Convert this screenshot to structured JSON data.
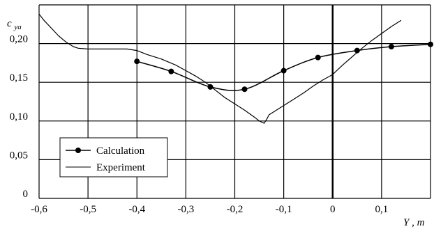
{
  "chart_data": {
    "type": "line",
    "title": "",
    "ylabel_main": "c",
    "ylabel_sub": "ya",
    "xlabel": "Y",
    "xunit": ", m",
    "xlim": [
      -0.6,
      0.2
    ],
    "ylim": [
      0,
      0.25
    ],
    "x_ticks": [
      -0.6,
      -0.5,
      -0.4,
      -0.3,
      -0.2,
      -0.1,
      0,
      0.1
    ],
    "x_tick_labels": [
      "-0,6",
      "-0,5",
      "-0,4",
      "-0,3",
      "-0,2",
      "-0,1",
      "0",
      "0,1"
    ],
    "y_ticks": [
      0,
      0.05,
      0.1,
      0.15,
      0.2
    ],
    "y_tick_labels": [
      "0",
      "0,05",
      "0,10",
      "0,15",
      "0,20"
    ],
    "grid": true,
    "legend_position": "bottom-left",
    "series": [
      {
        "name": "Calculation",
        "marker": "circle",
        "x": [
          -0.4,
          -0.33,
          -0.25,
          -0.18,
          -0.1,
          -0.03,
          0.05,
          0.12,
          0.2
        ],
        "y": [
          0.177,
          0.164,
          0.144,
          0.141,
          0.165,
          0.182,
          0.191,
          0.196,
          0.199
        ]
      },
      {
        "name": "Experiment",
        "marker": "none",
        "x": [
          -0.6,
          -0.59,
          -0.575,
          -0.56,
          -0.545,
          -0.53,
          -0.52,
          -0.5,
          -0.48,
          -0.45,
          -0.42,
          -0.4,
          -0.38,
          -0.35,
          -0.32,
          -0.3,
          -0.28,
          -0.26,
          -0.24,
          -0.22,
          -0.2,
          -0.18,
          -0.16,
          -0.15,
          -0.14,
          -0.135,
          -0.13,
          -0.12,
          -0.1,
          -0.08,
          -0.06,
          -0.04,
          -0.02,
          0.0,
          0.02,
          0.04,
          0.06,
          0.08,
          0.1,
          0.12,
          0.14
        ],
        "y": [
          0.238,
          0.23,
          0.22,
          0.21,
          0.202,
          0.196,
          0.194,
          0.193,
          0.193,
          0.193,
          0.193,
          0.191,
          0.186,
          0.18,
          0.172,
          0.165,
          0.158,
          0.15,
          0.14,
          0.13,
          0.122,
          0.114,
          0.105,
          0.1,
          0.097,
          0.102,
          0.108,
          0.112,
          0.12,
          0.128,
          0.136,
          0.145,
          0.153,
          0.16,
          0.172,
          0.183,
          0.194,
          0.204,
          0.213,
          0.222,
          0.23
        ]
      }
    ]
  }
}
